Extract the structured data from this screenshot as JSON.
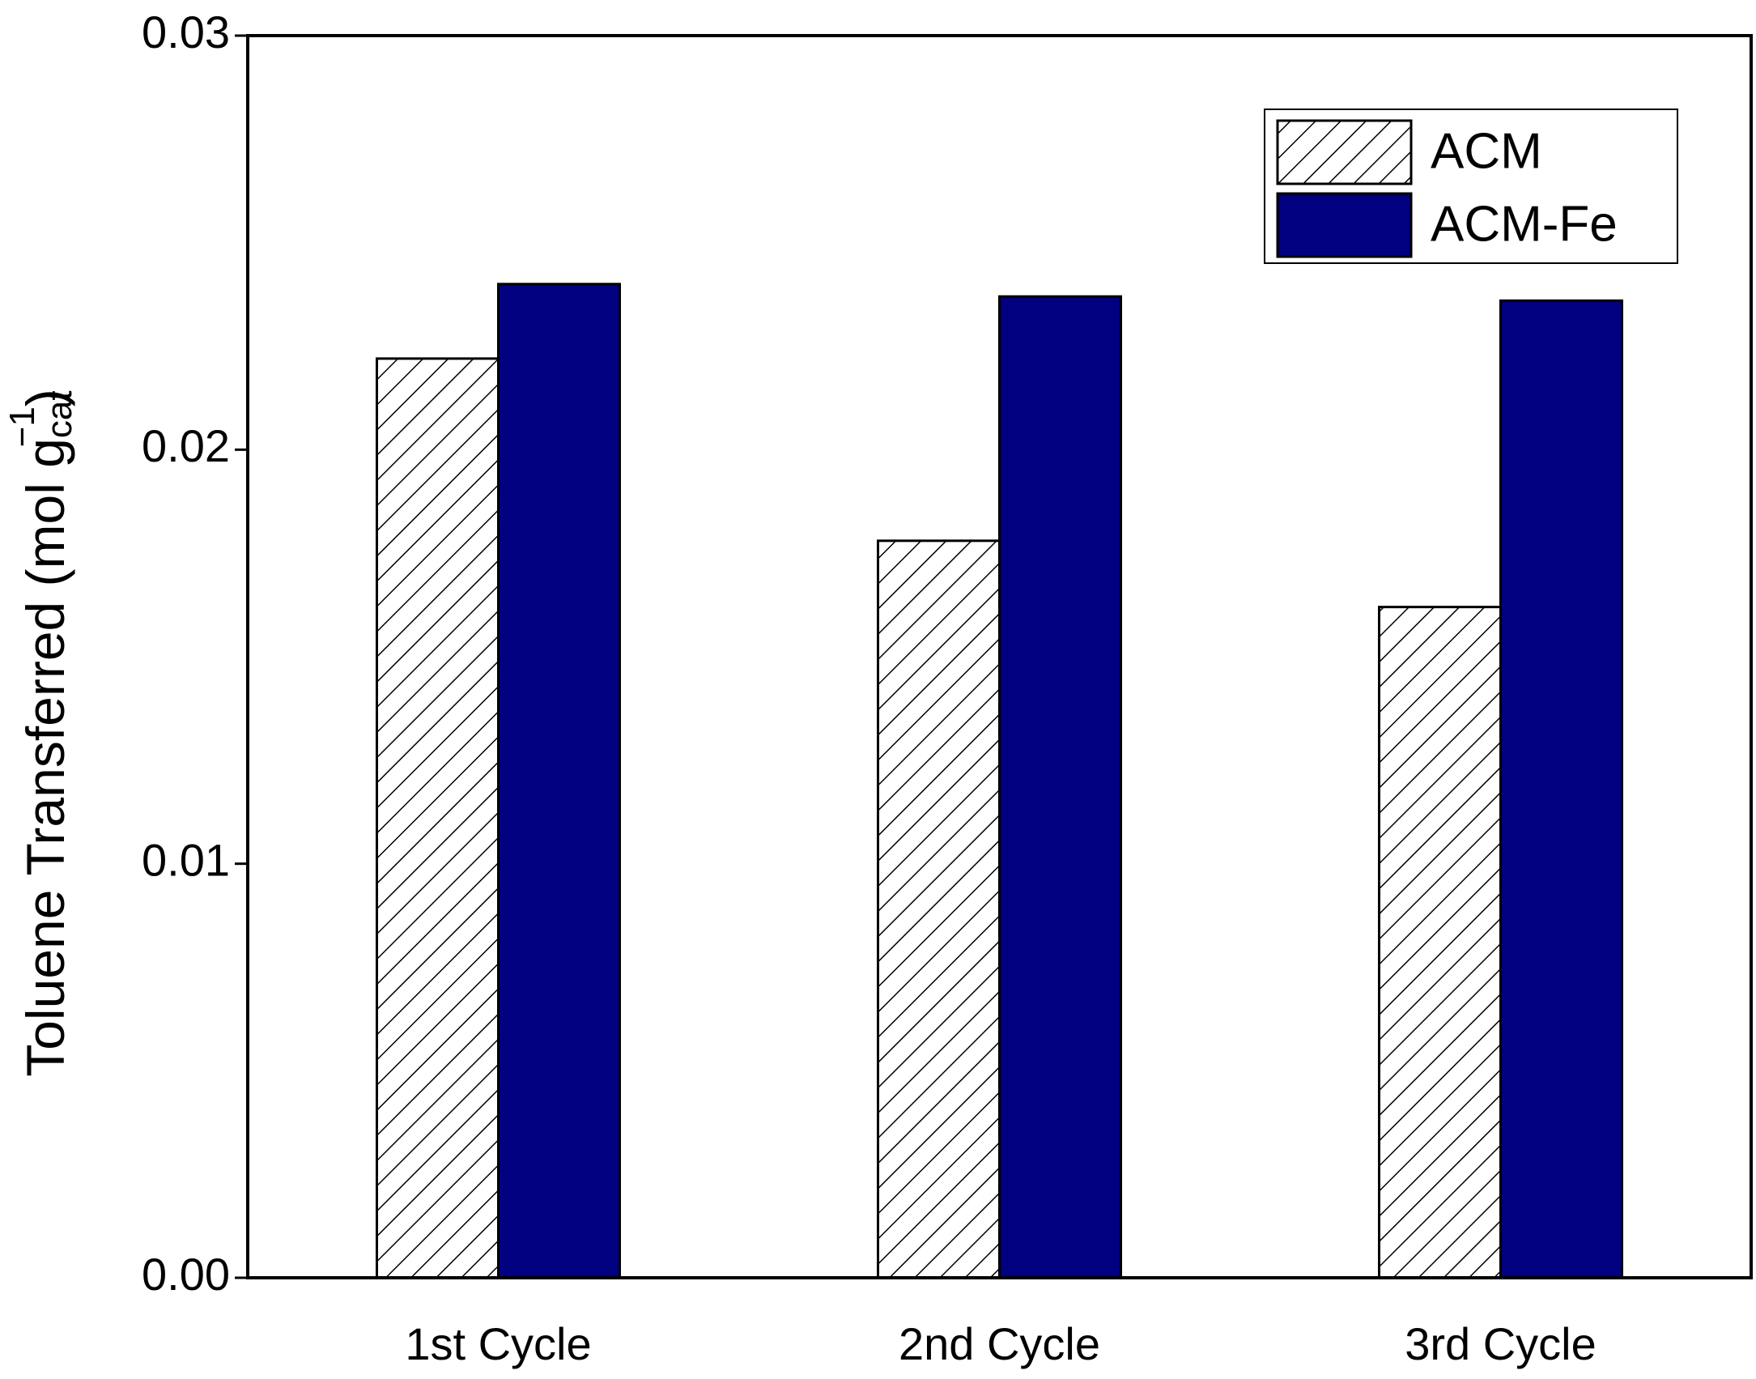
{
  "chart_data": {
    "type": "bar",
    "y_label": {
      "text": "Toluene Transferred (mol g",
      "sub": "cat",
      "sup": "−1",
      "end": ")"
    },
    "categories": [
      "1st Cycle",
      "2nd Cycle",
      "3rd Cycle"
    ],
    "series": [
      {
        "name": "ACM",
        "color": "#ffffff",
        "pattern": "hatch",
        "values": [
          0.0222,
          0.0178,
          0.0162
        ]
      },
      {
        "name": "ACM-Fe",
        "color": "#000080",
        "values": [
          0.024,
          0.0237,
          0.0236
        ]
      }
    ],
    "ylim": [
      0,
      0.03
    ],
    "yticks": [
      {
        "value": 0,
        "label": "0.00"
      },
      0.01,
      0.02,
      0.03
    ],
    "legend": "upper right"
  }
}
